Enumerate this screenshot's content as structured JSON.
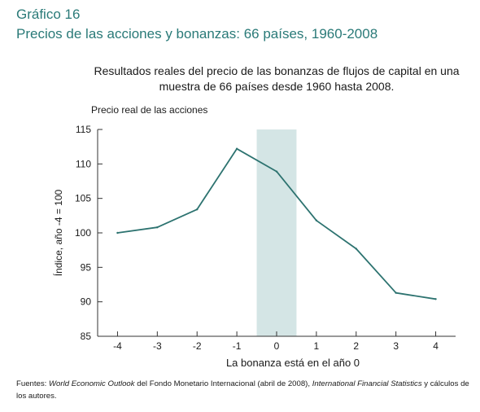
{
  "figure": {
    "label": "Gráfico 16",
    "title": "Precios de las acciones y bonanzas: 66 países, 1960-2008"
  },
  "chart_data": {
    "type": "line",
    "title": "Resultados reales del precio de las bonanzas de flujos de capital en una muestra de 66 países desde 1960 hasta 2008.",
    "series_label": "Precio real de las acciones",
    "xlabel": "La bonanza está en el año 0",
    "ylabel": "Índice, año -4 = 100",
    "x": [
      -4,
      -3,
      -2,
      -1,
      0,
      1,
      2,
      3,
      4
    ],
    "x_tick_labels": [
      "-4",
      "-3",
      "-2",
      "-1",
      "0",
      "1",
      "2",
      "3",
      "4"
    ],
    "series": [
      {
        "values": [
          100.0,
          100.8,
          103.4,
          112.2,
          108.9,
          101.8,
          97.7,
          91.3,
          90.4
        ]
      }
    ],
    "y_ticks": [
      85,
      90,
      95,
      100,
      105,
      110,
      115
    ],
    "ylim": [
      85,
      115
    ],
    "shaded_region": {
      "x_from": -0.5,
      "x_to": 0.5
    },
    "grid": false,
    "colors": {
      "line": "#2d7370",
      "shade": "#d4e5e5",
      "accent": "#2a7a78"
    }
  },
  "source": {
    "prefix": "Fuentes: ",
    "weo": "World Economic Outlook",
    "middle": " del Fondo Monetario Internacional (abril de 2008), ",
    "ifs": "International Financial Statistics",
    "suffix": " y cálculos de los autores."
  }
}
